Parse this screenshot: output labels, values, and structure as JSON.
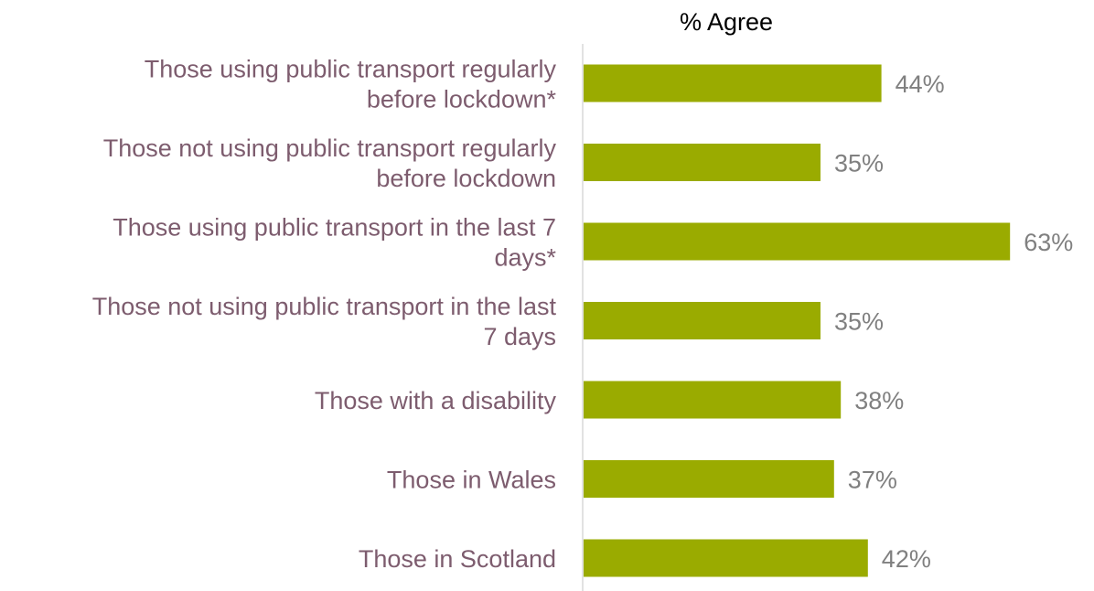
{
  "chart_data": {
    "type": "bar",
    "orientation": "horizontal",
    "title": "% Agree",
    "categories": [
      [
        "Those using public transport regularly",
        "before lockdown*"
      ],
      [
        "Those not using public transport regularly",
        "before lockdown"
      ],
      [
        "Those using public transport in the last 7",
        "days*"
      ],
      [
        "Those not using public transport in the last",
        "7 days"
      ],
      [
        "Those with a disability"
      ],
      [
        "Those in Wales"
      ],
      [
        "Those in Scotland"
      ]
    ],
    "values": [
      44,
      35,
      63,
      35,
      38,
      37,
      42
    ],
    "value_labels": [
      "44%",
      "35%",
      "63%",
      "35%",
      "38%",
      "37%",
      "42%"
    ],
    "xlim": [
      0,
      100
    ],
    "grid": false,
    "colors": {
      "bar": "#9aab00",
      "category_text": "#7d5c6e",
      "value_text": "#808080",
      "title_text": "#000000",
      "axis_line": "#d9d9d9"
    }
  }
}
